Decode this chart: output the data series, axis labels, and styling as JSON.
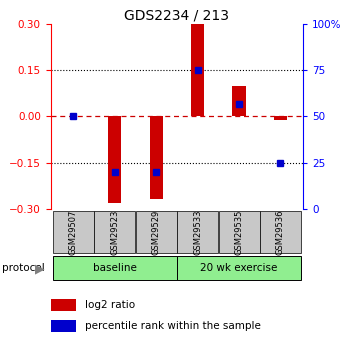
{
  "title": "GDS2234 / 213",
  "samples": [
    "GSM29507",
    "GSM29523",
    "GSM29529",
    "GSM29533",
    "GSM29535",
    "GSM29536"
  ],
  "log2_ratio": [
    0.0,
    -0.28,
    -0.27,
    0.3,
    0.1,
    -0.01
  ],
  "percentile_rank": [
    50,
    20,
    20,
    75,
    57,
    25
  ],
  "ylim_left": [
    -0.3,
    0.3
  ],
  "ylim_right": [
    0,
    100
  ],
  "yticks_left": [
    -0.3,
    -0.15,
    0,
    0.15,
    0.3
  ],
  "yticks_right": [
    0,
    25,
    50,
    75,
    100
  ],
  "ytick_labels_right": [
    "0",
    "25",
    "50",
    "75",
    "100%"
  ],
  "protocol_labels": [
    "baseline",
    "20 wk exercise"
  ],
  "bar_color": "#CC0000",
  "dot_color": "#0000CC",
  "zeroline_color": "#CC0000",
  "bar_width": 0.32,
  "sample_bg_color": "#C8C8C8",
  "legend_bar_label": "log2 ratio",
  "legend_dot_label": "percentile rank within the sample"
}
